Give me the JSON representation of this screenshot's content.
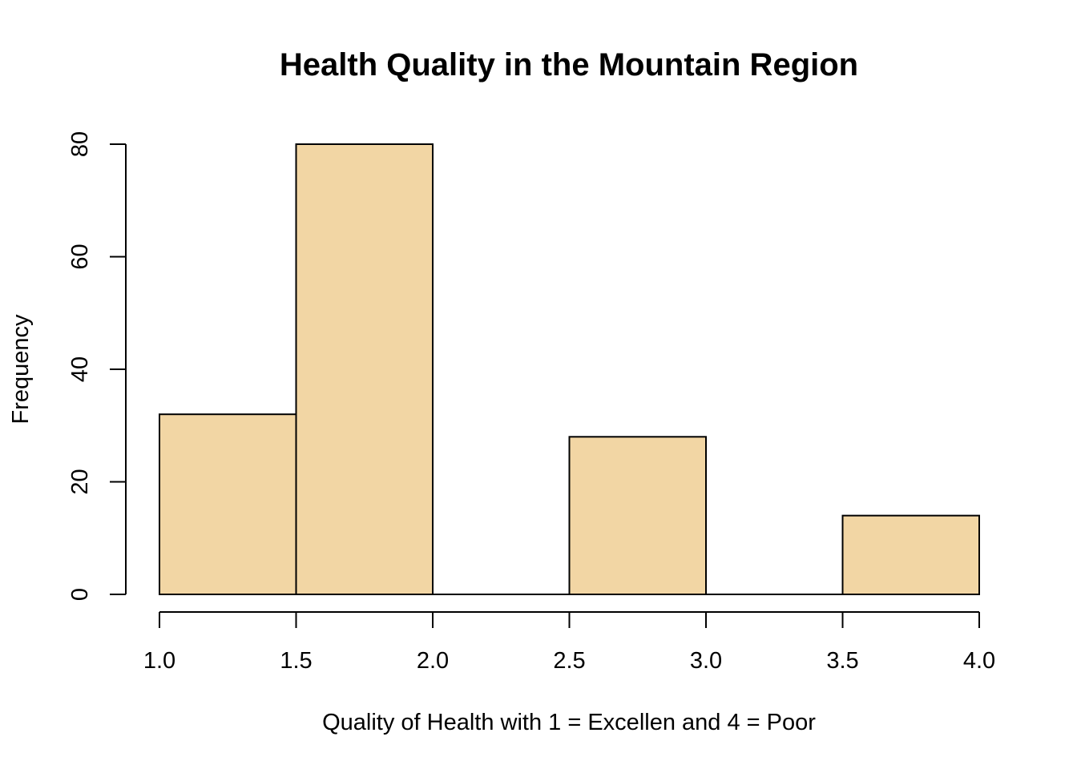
{
  "chart_data": {
    "type": "bar",
    "title": "Health Quality in the Mountain Region",
    "xlabel": "Quality of Health with 1 = Excellen and 4 = Poor",
    "ylabel": "Frequency",
    "bins": [
      {
        "start": 1.0,
        "end": 1.5,
        "count": 32
      },
      {
        "start": 1.5,
        "end": 2.0,
        "count": 80
      },
      {
        "start": 2.0,
        "end": 2.5,
        "count": 0
      },
      {
        "start": 2.5,
        "end": 3.0,
        "count": 28
      },
      {
        "start": 3.0,
        "end": 3.5,
        "count": 0
      },
      {
        "start": 3.5,
        "end": 4.0,
        "count": 14
      }
    ],
    "x_ticks": [
      1.0,
      1.5,
      2.0,
      2.5,
      3.0,
      3.5,
      4.0
    ],
    "x_tick_labels": [
      "1.0",
      "1.5",
      "2.0",
      "2.5",
      "3.0",
      "3.5",
      "4.0"
    ],
    "y_ticks": [
      0,
      20,
      40,
      60,
      80
    ],
    "y_tick_labels": [
      "0",
      "20",
      "40",
      "60",
      "80"
    ],
    "xlim": [
      1.0,
      4.0
    ],
    "ylim": [
      0,
      80
    ],
    "grid": false,
    "bar_color": "#F2D6A4",
    "edge_color": "#000000"
  }
}
